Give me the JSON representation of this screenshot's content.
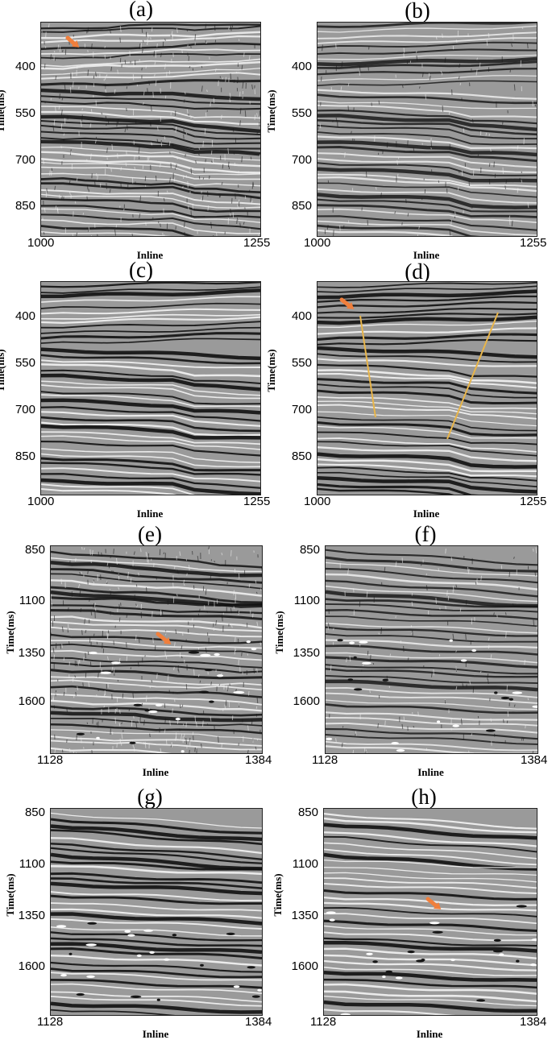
{
  "panels": [
    {
      "label": "(a)",
      "yticks": [
        "400",
        "550",
        "700",
        "850"
      ],
      "xticks": [
        "1000",
        "1255"
      ],
      "ylabel": "Time(ms)",
      "xlabel": "Inline"
    },
    {
      "label": "(b)",
      "yticks": [
        "400",
        "550",
        "700",
        "850"
      ],
      "xticks": [
        "1000",
        "1255"
      ],
      "ylabel": "Time(ms)",
      "xlabel": "Inline"
    },
    {
      "label": "(c)",
      "yticks": [
        "400",
        "550",
        "700",
        "850"
      ],
      "xticks": [
        "1000",
        "1255"
      ],
      "ylabel": "Time(ms)",
      "xlabel": "Inline"
    },
    {
      "label": "(d)",
      "yticks": [
        "400",
        "550",
        "700",
        "850"
      ],
      "xticks": [
        "1000",
        "1255"
      ],
      "ylabel": "Time(ms)",
      "xlabel": "Inline"
    },
    {
      "label": "(e)",
      "yticks": [
        "850",
        "1100",
        "1350",
        "1600"
      ],
      "xticks": [
        "1128",
        "1384"
      ],
      "ylabel": "Time(ms)",
      "xlabel": "Inline"
    },
    {
      "label": "(f)",
      "yticks": [
        "850",
        "1100",
        "1350",
        "1600"
      ],
      "xticks": [
        "1128",
        "1384"
      ],
      "ylabel": "Time(ms)",
      "xlabel": "Inline"
    },
    {
      "label": "(g)",
      "yticks": [
        "850",
        "1100",
        "1350",
        "1600"
      ],
      "xticks": [
        "1128",
        "1384"
      ],
      "ylabel": "Time(ms)",
      "xlabel": "Inline"
    },
    {
      "label": "(h)",
      "yticks": [
        "850",
        "1100",
        "1350",
        "1600"
      ],
      "xticks": [
        "1128",
        "1384"
      ],
      "ylabel": "Time(ms)",
      "xlabel": "Inline"
    }
  ],
  "colors": {
    "arrow": "#f07f3c",
    "fault_line": "#e8b54a",
    "reflector": "#111111",
    "background": "#9a9a9a"
  }
}
